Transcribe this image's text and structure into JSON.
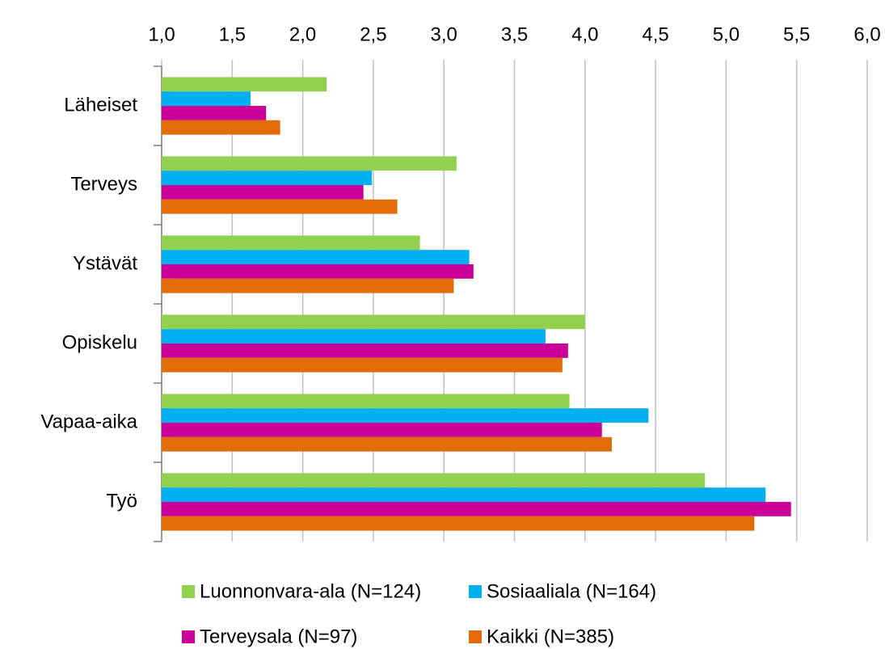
{
  "chart_data": {
    "type": "hbar",
    "categories": [
      "Läheiset",
      "Terveys",
      "Ystävät",
      "Opiskelu",
      "Vapaa-aika",
      "Työ"
    ],
    "series": [
      {
        "name": "Luonnonvara-ala (N=124)",
        "color": "#92d050",
        "values": [
          2.17,
          3.09,
          2.83,
          4.0,
          3.89,
          4.85
        ]
      },
      {
        "name": "Sosiaaliala (N=164)",
        "color": "#00b0f0",
        "values": [
          1.63,
          2.49,
          3.18,
          3.72,
          4.45,
          5.28
        ]
      },
      {
        "name": "Terveysala (N=97)",
        "color": "#cc0099",
        "values": [
          1.74,
          2.43,
          3.21,
          3.88,
          4.12,
          5.46
        ]
      },
      {
        "name": "Kaikki (N=385)",
        "color": "#e36c09",
        "values": [
          1.84,
          2.67,
          3.07,
          3.84,
          4.19,
          5.2
        ]
      }
    ],
    "xlim": [
      1,
      6
    ],
    "xticks": [
      {
        "value": 1,
        "label": "1,0"
      },
      {
        "value": 1.5,
        "label": "1,5"
      },
      {
        "value": 2,
        "label": "2,0"
      },
      {
        "value": 2.5,
        "label": "2,5"
      },
      {
        "value": 3,
        "label": "3,0"
      },
      {
        "value": 3.5,
        "label": "3,5"
      },
      {
        "value": 4,
        "label": "4,0"
      },
      {
        "value": 4.5,
        "label": "4,5"
      },
      {
        "value": 5,
        "label": "5,0"
      },
      {
        "value": 5.5,
        "label": "5,5"
      },
      {
        "value": 6,
        "label": "6,0"
      }
    ],
    "grid": true,
    "legend": "bottom"
  }
}
